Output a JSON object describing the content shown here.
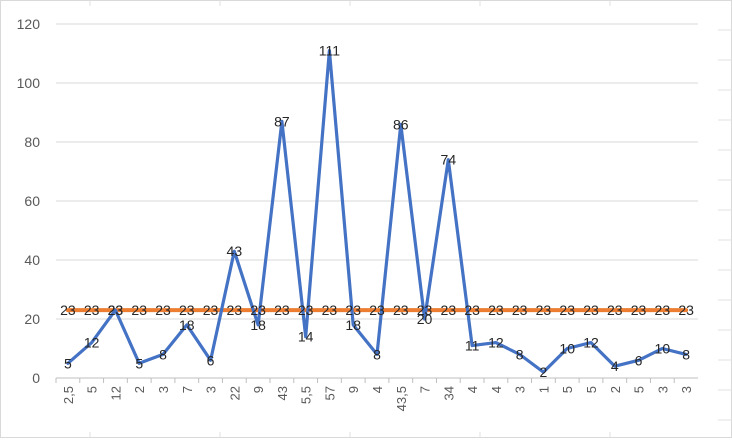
{
  "chart_data": {
    "type": "line",
    "categories": [
      "2,5",
      "5",
      "12",
      "2",
      "3",
      "7",
      "3",
      "22",
      "9",
      "43",
      "5,5",
      "57",
      "9",
      "4",
      "43,5",
      "7",
      "34",
      "4",
      "4",
      "3",
      "1",
      "5",
      "5",
      "2",
      "5",
      "3",
      "3"
    ],
    "series": [
      {
        "values": [
          5,
          12,
          23,
          5,
          8,
          18,
          6,
          43,
          18,
          87,
          14,
          111,
          18,
          8,
          86,
          20,
          74,
          11,
          12,
          8,
          2,
          10,
          12,
          4,
          6,
          10,
          8
        ],
        "color": "#4472C4",
        "labels": [
          "5",
          "12",
          "23",
          "5",
          "8",
          "18",
          "6",
          "43",
          "18",
          "87",
          "14",
          "111",
          "18",
          "8",
          "86",
          "20",
          "74",
          "11",
          "12",
          "8",
          "2",
          "10",
          "12",
          "4",
          "6",
          "10",
          "8"
        ]
      },
      {
        "values": [
          23,
          23,
          23,
          23,
          23,
          23,
          23,
          23,
          23,
          23,
          23,
          23,
          23,
          23,
          23,
          23,
          23,
          23,
          23,
          23,
          23,
          23,
          23,
          23,
          23,
          23,
          23
        ],
        "color": "#ED7D31",
        "labels": [
          "23",
          "23",
          "23",
          "23",
          "23",
          "23",
          "23",
          "23",
          "23",
          "23",
          "23",
          "23",
          "23",
          "23",
          "23",
          "23",
          "23",
          "23",
          "23",
          "23",
          "23",
          "23",
          "23",
          "23",
          "23",
          "23",
          "23"
        ]
      }
    ],
    "yticks": [
      "0",
      "20",
      "40",
      "60",
      "80",
      "100",
      "120"
    ],
    "ylim": [
      0,
      120
    ],
    "grid": true,
    "legend": "none",
    "title": "",
    "xlabel": "",
    "ylabel": ""
  }
}
